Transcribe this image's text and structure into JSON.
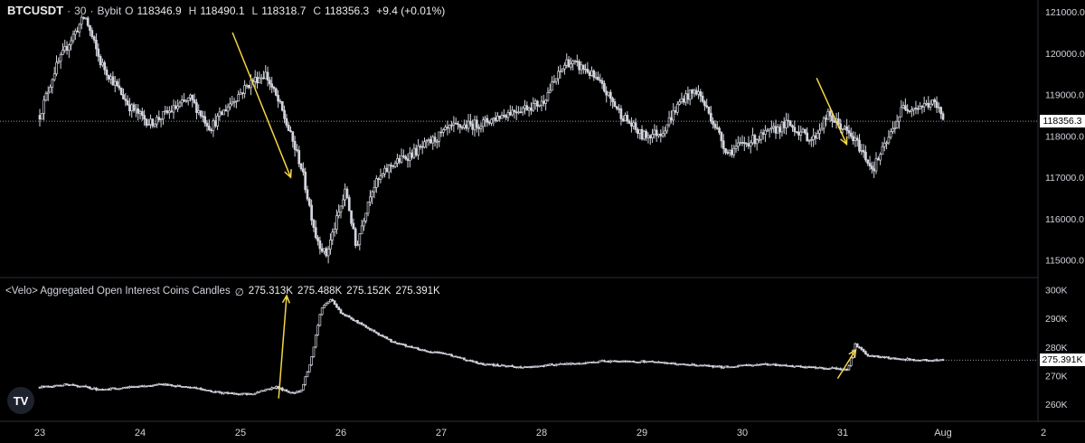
{
  "header": {
    "symbol": "BTCUSDT",
    "timeframe": "30",
    "exchange": "Bybit",
    "ohlc": {
      "o_label": "O",
      "o": "118346.9",
      "h_label": "H",
      "h": "118490.1",
      "l_label": "L",
      "l": "118318.7",
      "c_label": "C",
      "c": "118356.3",
      "change": "+9.4 (+0.01%)"
    },
    "separator": "·"
  },
  "indicator": {
    "name": "<Velo> Aggregated Open Interest Coins Candles",
    "setting": "∅",
    "values": [
      "275.313K",
      "275.488K",
      "275.152K",
      "275.391K"
    ]
  },
  "logo_text": "TV",
  "colors": {
    "background": "#000000",
    "candle": "#d1d4dc",
    "annotation_arrow": "#f5d547",
    "price_line": "#9598a1",
    "text": "#d1d4dc"
  },
  "chart_data": [
    {
      "type": "candlestick",
      "title": "BTCUSDT · 30 · Bybit",
      "y_ticks": [
        "121000.0",
        "120000.0",
        "119000.0",
        "118000.0",
        "117000.0",
        "116000.0",
        "115000.0"
      ],
      "ylim": [
        114600,
        121200
      ],
      "last_price": "118356.3",
      "x_ticks": [
        "23",
        "24",
        "25",
        "26",
        "27",
        "28",
        "29",
        "30",
        "31",
        "Aug",
        "2"
      ],
      "close_path": [
        [
          0,
          118500
        ],
        [
          0.15,
          119600
        ],
        [
          0.3,
          120300
        ],
        [
          0.45,
          120900
        ],
        [
          0.6,
          119800
        ],
        [
          0.9,
          118700
        ],
        [
          1.1,
          118300
        ],
        [
          1.3,
          118600
        ],
        [
          1.5,
          118900
        ],
        [
          1.7,
          118200
        ],
        [
          1.9,
          118800
        ],
        [
          2.1,
          119300
        ],
        [
          2.25,
          119500
        ],
        [
          2.4,
          118700
        ],
        [
          2.6,
          117300
        ],
        [
          2.75,
          115600
        ],
        [
          2.85,
          115100
        ],
        [
          2.95,
          115900
        ],
        [
          3.05,
          116700
        ],
        [
          3.15,
          115300
        ],
        [
          3.3,
          116700
        ],
        [
          3.5,
          117300
        ],
        [
          3.8,
          117700
        ],
        [
          4.1,
          118200
        ],
        [
          4.4,
          118300
        ],
        [
          4.7,
          118600
        ],
        [
          5.0,
          118800
        ],
        [
          5.15,
          119400
        ],
        [
          5.25,
          119800
        ],
        [
          5.45,
          119600
        ],
        [
          5.6,
          119200
        ],
        [
          5.8,
          118500
        ],
        [
          6.0,
          118000
        ],
        [
          6.2,
          118100
        ],
        [
          6.4,
          118900
        ],
        [
          6.55,
          119100
        ],
        [
          6.7,
          118400
        ],
        [
          6.85,
          117600
        ],
        [
          7.0,
          117800
        ],
        [
          7.2,
          118000
        ],
        [
          7.45,
          118300
        ],
        [
          7.7,
          117900
        ],
        [
          7.85,
          118500
        ],
        [
          8.0,
          118200
        ],
        [
          8.15,
          117800
        ],
        [
          8.3,
          117200
        ],
        [
          8.45,
          117900
        ],
        [
          8.6,
          118700
        ],
        [
          8.75,
          118700
        ],
        [
          8.9,
          118800
        ],
        [
          9.0,
          118500
        ]
      ]
    },
    {
      "type": "candlestick",
      "title": "<Velo> Aggregated Open Interest Coins Candles",
      "y_ticks": [
        "300K",
        "290K",
        "280K",
        "270K",
        "260K"
      ],
      "ylim": [
        254000,
        304000
      ],
      "last_value": "275.391K",
      "close_path": [
        [
          0,
          266000
        ],
        [
          0.3,
          267000
        ],
        [
          0.6,
          265000
        ],
        [
          0.9,
          266000
        ],
        [
          1.2,
          267000
        ],
        [
          1.5,
          266000
        ],
        [
          1.8,
          264000
        ],
        [
          2.1,
          263500
        ],
        [
          2.35,
          266000
        ],
        [
          2.5,
          264000
        ],
        [
          2.6,
          264500
        ],
        [
          2.7,
          275000
        ],
        [
          2.8,
          293000
        ],
        [
          2.9,
          297000
        ],
        [
          3.0,
          292000
        ],
        [
          3.2,
          288000
        ],
        [
          3.5,
          282000
        ],
        [
          3.8,
          279000
        ],
        [
          4.1,
          277000
        ],
        [
          4.4,
          274000
        ],
        [
          4.8,
          273000
        ],
        [
          5.2,
          274000
        ],
        [
          5.6,
          275000
        ],
        [
          6.0,
          275000
        ],
        [
          6.4,
          274000
        ],
        [
          6.8,
          273000
        ],
        [
          7.2,
          274000
        ],
        [
          7.6,
          273000
        ],
        [
          7.9,
          272500
        ],
        [
          8.05,
          272000
        ],
        [
          8.12,
          281000
        ],
        [
          8.25,
          277000
        ],
        [
          8.5,
          276000
        ],
        [
          8.75,
          275500
        ],
        [
          9.0,
          275400
        ]
      ]
    }
  ]
}
